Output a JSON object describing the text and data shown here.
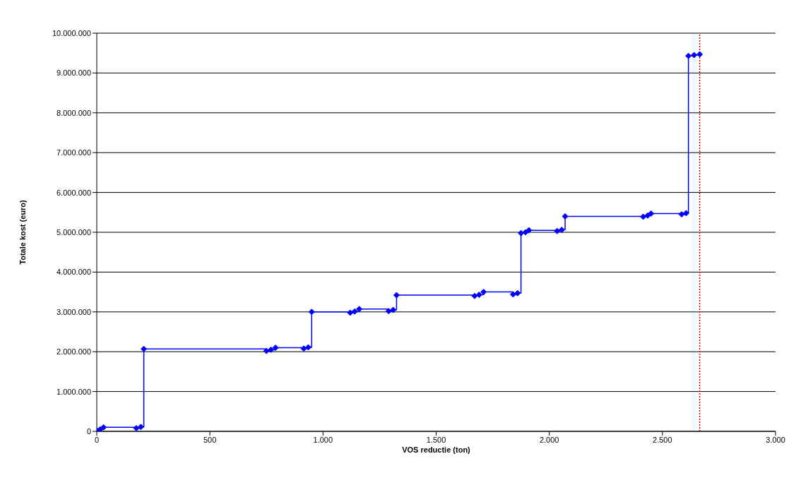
{
  "chart_data": {
    "type": "step",
    "xlabel": "VOS reductie (ton)",
    "ylabel": "Totale kost (euro)",
    "xlim": [
      0,
      3000
    ],
    "xticks": [
      0,
      500,
      {
        "value": 1000,
        "label": "1.000"
      },
      {
        "value": 1500,
        "label": "1.500"
      },
      {
        "value": 2000,
        "label": "2.000"
      },
      {
        "value": 2500,
        "label": "2.500"
      },
      {
        "value": 3000,
        "label": "3.000"
      }
    ],
    "ylim": [
      0,
      10000000
    ],
    "yticks": [
      0,
      {
        "value": 1000000,
        "label": "1.000.000"
      },
      {
        "value": 2000000,
        "label": "2.000.000"
      },
      {
        "value": 3000000,
        "label": "3.000.000"
      },
      {
        "value": 4000000,
        "label": "4.000.000"
      },
      {
        "value": 5000000,
        "label": "5.000.000"
      },
      {
        "value": 6000000,
        "label": "6.000.000"
      },
      {
        "value": 7000000,
        "label": "7.000.000"
      },
      {
        "value": 8000000,
        "label": "8.000.000"
      },
      {
        "value": 9000000,
        "label": "9.000.000"
      },
      {
        "value": 10000000,
        "label": "10.000.000"
      }
    ],
    "grid": "y",
    "marker": "diamond",
    "line_style": "solid",
    "legend": false,
    "series": [
      {
        "color": "#0000ff",
        "x": [
          0,
          15,
          30,
          175,
          195,
          208,
          750,
          770,
          790,
          915,
          935,
          950,
          1120,
          1140,
          1160,
          1290,
          1310,
          1325,
          1670,
          1690,
          1710,
          1840,
          1860,
          1875,
          1895,
          1910,
          2035,
          2055,
          2070,
          2415,
          2435,
          2450,
          2585,
          2605,
          2615,
          2640,
          2665
        ],
        "values": [
          20000,
          50000,
          100000,
          80000,
          110000,
          2070000,
          2020000,
          2050000,
          2100000,
          2080000,
          2110000,
          3000000,
          2980000,
          3010000,
          3070000,
          3020000,
          3050000,
          3420000,
          3400000,
          3430000,
          3500000,
          3440000,
          3470000,
          4980000,
          5000000,
          5050000,
          5030000,
          5060000,
          5400000,
          5390000,
          5420000,
          5470000,
          5450000,
          5480000,
          9430000,
          9450000,
          9470000
        ]
      }
    ],
    "ref_lines": [
      {
        "axis": "x",
        "value": 2665,
        "color": "#ff0000",
        "line_style": "dotted"
      }
    ]
  }
}
